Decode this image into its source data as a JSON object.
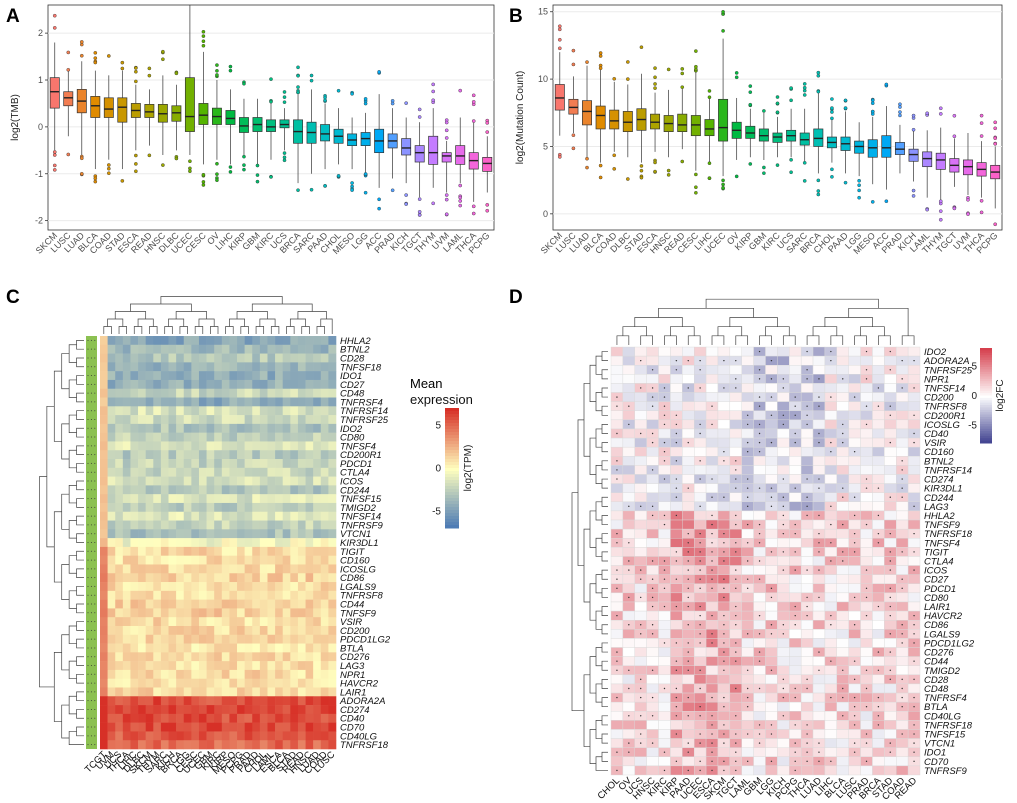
{
  "panel_letters": [
    "A",
    "B",
    "C",
    "D"
  ],
  "chart_data": [
    {
      "panel": "A",
      "type": "box",
      "ylabel": "log2(TMB)",
      "ylim": [
        -2.2,
        2.6
      ],
      "yticks": [
        -2,
        -1,
        0,
        1,
        2
      ],
      "categories": [
        "SKCM",
        "LUSC",
        "LUAD",
        "BLCA",
        "COAD",
        "STAD",
        "ESCA",
        "READ",
        "HNSC",
        "DLBC",
        "UCEC",
        "CESC",
        "OV",
        "LIHC",
        "KIRP",
        "GBM",
        "KIRC",
        "UCS",
        "BRCA",
        "SARC",
        "PAAD",
        "CHOL",
        "MESO",
        "LGG",
        "ACC",
        "PRAD",
        "KICH",
        "TGCT",
        "THYM",
        "UVM",
        "LAML",
        "THCA",
        "PCPG"
      ],
      "medians": [
        0.75,
        0.62,
        0.55,
        0.45,
        0.38,
        0.42,
        0.35,
        0.32,
        0.28,
        0.3,
        0.22,
        0.25,
        0.22,
        0.18,
        0.02,
        0.05,
        0.0,
        0.05,
        -0.1,
        -0.12,
        -0.15,
        -0.2,
        -0.28,
        -0.25,
        -0.3,
        -0.3,
        -0.45,
        -0.55,
        -0.55,
        -0.62,
        -0.62,
        -0.72,
        -0.78
      ],
      "q1": [
        0.4,
        0.45,
        0.3,
        0.2,
        0.2,
        0.1,
        0.2,
        0.2,
        0.1,
        0.12,
        -0.1,
        0.05,
        0.05,
        0.05,
        -0.12,
        -0.1,
        -0.1,
        -0.02,
        -0.35,
        -0.35,
        -0.3,
        -0.35,
        -0.4,
        -0.4,
        -0.55,
        -0.45,
        -0.6,
        -0.75,
        -0.8,
        -0.75,
        -0.8,
        -0.9,
        -0.95
      ],
      "q3": [
        1.05,
        0.75,
        0.8,
        0.65,
        0.62,
        0.62,
        0.5,
        0.48,
        0.48,
        0.45,
        1.05,
        0.5,
        0.4,
        0.35,
        0.2,
        0.2,
        0.15,
        0.15,
        0.15,
        0.1,
        0.05,
        -0.05,
        -0.15,
        -0.12,
        -0.05,
        -0.15,
        -0.25,
        -0.4,
        -0.2,
        -0.55,
        -0.4,
        -0.55,
        -0.65
      ],
      "whisker_low": [
        -0.5,
        -0.2,
        -0.6,
        -0.9,
        -0.7,
        -0.9,
        -0.5,
        -0.4,
        -0.6,
        -0.5,
        -0.6,
        -0.8,
        -0.7,
        -0.8,
        -0.6,
        -0.8,
        -0.7,
        -0.5,
        -1.2,
        -1.0,
        -0.9,
        -0.8,
        -0.9,
        -1.0,
        -1.3,
        -1.1,
        -1.2,
        -1.5,
        -1.3,
        -1.4,
        -1.2,
        -1.6,
        -1.4
      ],
      "whisker_high": [
        1.8,
        1.2,
        1.4,
        1.2,
        1.1,
        1.2,
        0.9,
        0.8,
        1.1,
        0.9,
        2.6,
        1.6,
        1.0,
        0.8,
        0.6,
        0.6,
        0.5,
        0.4,
        0.7,
        0.8,
        0.5,
        0.4,
        0.2,
        0.3,
        0.7,
        0.4,
        0.2,
        0.1,
        0.4,
        -0.3,
        0.2,
        0.1,
        -0.2
      ],
      "colors": [
        "#F8766D",
        "#F27D52",
        "#EA842C",
        "#E08B00",
        "#D59100",
        "#C99800",
        "#BB9D00",
        "#ACA300",
        "#9BA700",
        "#88AC00",
        "#72B000",
        "#55B400",
        "#2AB71B",
        "#00BA42",
        "#00BC59",
        "#00BE6D",
        "#00BF7F",
        "#00C091",
        "#00C0A2",
        "#00BFB3",
        "#00BDC2",
        "#00BAD1",
        "#00B5DF",
        "#00AFEB",
        "#00A8F5",
        "#529FFF",
        "#8B93FF",
        "#AB87FF",
        "#C47CFF",
        "#D872F6",
        "#E76BEA",
        "#F366DB",
        "#FB61C8"
      ]
    },
    {
      "panel": "B",
      "type": "box",
      "ylabel": "log2(Mutation Count)",
      "ylim": [
        -1.2,
        15.5
      ],
      "yticks": [
        0,
        5,
        10,
        15
      ],
      "categories": [
        "SKCM",
        "LUSC",
        "LUAD",
        "BLCA",
        "COAD",
        "DLBC",
        "STAD",
        "ESCA",
        "HNSC",
        "READ",
        "CESC",
        "LIHC",
        "UCEC",
        "OV",
        "KIRP",
        "GBM",
        "KIRC",
        "UCS",
        "SARC",
        "BRCA",
        "CHOL",
        "PAAD",
        "LGG",
        "MESO",
        "ACC",
        "PRAD",
        "KICH",
        "LAML",
        "THYM",
        "TGCT",
        "UVM",
        "THCA",
        "PCPG"
      ],
      "medians": [
        8.6,
        7.9,
        7.6,
        7.3,
        6.9,
        6.8,
        7.0,
        6.8,
        6.7,
        6.6,
        6.6,
        6.3,
        6.4,
        6.2,
        6.0,
        5.8,
        5.7,
        5.8,
        5.5,
        5.6,
        5.3,
        5.2,
        5.0,
        4.9,
        4.9,
        4.8,
        4.4,
        4.1,
        4.0,
        3.6,
        3.5,
        3.3,
        3.1
      ],
      "q1": [
        7.7,
        7.4,
        6.6,
        6.3,
        6.3,
        6.1,
        6.2,
        6.3,
        6.1,
        6.1,
        5.8,
        5.8,
        5.4,
        5.6,
        5.6,
        5.4,
        5.3,
        5.4,
        5.1,
        5.0,
        4.9,
        4.7,
        4.5,
        4.2,
        4.2,
        4.4,
        3.9,
        3.5,
        3.3,
        3.1,
        2.9,
        2.8,
        2.6
      ],
      "q3": [
        9.6,
        8.5,
        8.4,
        8.0,
        7.7,
        7.6,
        7.8,
        7.4,
        7.3,
        7.4,
        7.3,
        7.0,
        8.5,
        6.8,
        6.5,
        6.3,
        6.0,
        6.2,
        6.0,
        6.3,
        5.7,
        5.7,
        5.4,
        5.5,
        5.8,
        5.3,
        4.8,
        4.6,
        4.5,
        4.1,
        4.0,
        3.8,
        3.6
      ],
      "whisker_low": [
        5.8,
        6.0,
        4.2,
        3.8,
        4.6,
        4.2,
        3.8,
        4.6,
        4.2,
        4.8,
        3.2,
        3.8,
        2.8,
        4.0,
        4.2,
        4.0,
        4.2,
        4.2,
        3.8,
        3.0,
        3.8,
        3.0,
        2.8,
        2.2,
        1.8,
        3.0,
        2.4,
        1.2,
        1.0,
        2.0,
        1.4,
        1.2,
        0.4
      ],
      "whisker_high": [
        12.0,
        10.2,
        11.0,
        10.8,
        9.8,
        9.6,
        10.4,
        9.0,
        9.2,
        9.4,
        10.6,
        8.6,
        13.0,
        8.6,
        7.8,
        7.5,
        7.2,
        7.8,
        7.8,
        9.0,
        7.0,
        7.6,
        6.8,
        7.2,
        8.0,
        6.6,
        6.2,
        6.2,
        6.4,
        5.6,
        6.0,
        5.4,
        5.0
      ],
      "colors": [
        "#F8766D",
        "#F27D52",
        "#EA842C",
        "#E08B00",
        "#D59100",
        "#C99800",
        "#BB9D00",
        "#ACA300",
        "#9BA700",
        "#88AC00",
        "#72B000",
        "#55B400",
        "#2AB71B",
        "#00BA42",
        "#00BC59",
        "#00BE6D",
        "#00BF7F",
        "#00C091",
        "#00C0A2",
        "#00BFB3",
        "#00BDC2",
        "#00BAD1",
        "#00B5DF",
        "#00AFEB",
        "#00A8F5",
        "#529FFF",
        "#8B93FF",
        "#AB87FF",
        "#C47CFF",
        "#D872F6",
        "#E76BEA",
        "#F366DB",
        "#FB61C8"
      ]
    },
    {
      "panel": "C",
      "type": "heatmap",
      "legend_title": "Mean expression",
      "legend_axis_label": "log2(TPM)",
      "legend_ticks": [
        5,
        0,
        -5
      ],
      "color_low": "#4575B4",
      "color_mid": "#FFFFBF",
      "color_high": "#D73027",
      "row_annotation_color": "#8CC152",
      "rows": [
        "HHLA2",
        "BTNL2",
        "CD28",
        "TNFSF18",
        "IDO1",
        "CD27",
        "CD48",
        "TNFRSF4",
        "TNFRSF14",
        "TNFRSF25",
        "IDO2",
        "CD80",
        "TNFSF4",
        "CD200R1",
        "PDCD1",
        "CTLA4",
        "ICOS",
        "CD244",
        "TNFSF15",
        "TMIGD2",
        "TNFSF14",
        "TNFRSF9",
        "VTCN1",
        "KIR3DL1",
        "TIGIT",
        "CD160",
        "ICOSLG",
        "CD86",
        "LGALS9",
        "TNFRSF8",
        "CD44",
        "TNFSF9",
        "VSIR",
        "CD200",
        "PDCD1LG2",
        "BTLA",
        "CD276",
        "LAG3",
        "NPR1",
        "HAVCR2",
        "LAIR1",
        "ADORA2A",
        "CD274",
        "CD40",
        "CD70",
        "CD40LG",
        "TNFRSF18"
      ],
      "columns": [
        "TCGT",
        "UVM",
        "UCS",
        "THCA",
        "LIHC",
        "DLBC",
        "SKCM",
        "THYM",
        "SARC",
        "KICH",
        "BRCA",
        "LGG",
        "CESC",
        "UCEC",
        "GBM",
        "KIRC",
        "KIRP",
        "MESO",
        "PCPG",
        "PRAD",
        "PAAD",
        "CHOL",
        "LAML",
        "ESCA",
        "BLCA",
        "STAD",
        "READ",
        "HNSC",
        "LUAD",
        "COAD",
        "LUSC"
      ],
      "row_group_levels": [
        -4.5,
        -3.5,
        -2.8,
        -3.8,
        -4.2,
        -4.0,
        -2.0,
        -4.4,
        -1.5,
        -1.8,
        -3.0,
        -2.4,
        -1.2,
        -2.6,
        -2.2,
        -2.0,
        -1.6,
        -2.8,
        -1.4,
        -2.5,
        -1.3,
        -2.2,
        -3.2,
        -0.4,
        1.2,
        1.0,
        1.3,
        1.5,
        1.2,
        1.0,
        1.4,
        1.5,
        1.2,
        1.3,
        1.2,
        1.0,
        1.3,
        1.1,
        1.2,
        1.0,
        1.3,
        6.0,
        6.5,
        6.0,
        6.2,
        5.5,
        5.0
      ]
    },
    {
      "panel": "D",
      "type": "heatmap",
      "legend_title": "log2FC",
      "legend_ticks": [
        5,
        0,
        -5
      ],
      "color_low": "#3A3C8C",
      "color_mid": "#FFFFFF",
      "color_high": "#D6404E",
      "rows": [
        "IDO2",
        "ADORA2A",
        "TNFRSF25",
        "NPR1",
        "TNFSF14",
        "CD200",
        "TNFRSF8",
        "CD200R1",
        "ICOSLG",
        "CD40",
        "VSIR",
        "CD160",
        "BTNL2",
        "TNFRSF14",
        "CD274",
        "KIR3DL1",
        "CD244",
        "LAG3",
        "HHLA2",
        "TNFSF9",
        "TNFRSF18",
        "TNFSF4",
        "TIGIT",
        "CTLA4",
        "ICOS",
        "CD27",
        "PDCD1",
        "CD80",
        "LAIR1",
        "HAVCR2",
        "CD86",
        "LGALS9",
        "PDCD1LG2",
        "CD276",
        "CD44",
        "TMIGD2",
        "CD28",
        "CD48",
        "TNFRSF4",
        "BTLA",
        "CD40LG",
        "TNFRSF18",
        "TNFSF15",
        "VTCN1",
        "IDO1",
        "CD70",
        "TNFRSF9"
      ],
      "columns": [
        "CHOL",
        "OV",
        "UCS",
        "HNSC",
        "KIRC",
        "KIRP",
        "PAAD",
        "UCEC",
        "ESCA",
        "SKCM",
        "TGCT",
        "LAML",
        "GBM",
        "LGG",
        "KICH",
        "PCPG",
        "THCA",
        "LUAD",
        "LIHC",
        "BLCA",
        "LUSC",
        "PRAD",
        "BRCA",
        "STAD",
        "COAD",
        "READ"
      ]
    }
  ]
}
